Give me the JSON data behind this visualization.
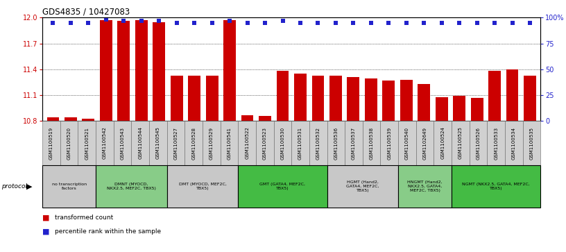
{
  "title": "GDS4835 / 10427083",
  "samples": [
    "GSM1100519",
    "GSM1100520",
    "GSM1100521",
    "GSM1100542",
    "GSM1100543",
    "GSM1100544",
    "GSM1100545",
    "GSM1100527",
    "GSM1100528",
    "GSM1100529",
    "GSM1100541",
    "GSM1100522",
    "GSM1100523",
    "GSM1100530",
    "GSM1100531",
    "GSM1100532",
    "GSM1100536",
    "GSM1100537",
    "GSM1100538",
    "GSM1100539",
    "GSM1100540",
    "GSM1102649",
    "GSM1100524",
    "GSM1100525",
    "GSM1100526",
    "GSM1100533",
    "GSM1100534",
    "GSM1100535"
  ],
  "red_values": [
    10.84,
    10.84,
    10.83,
    11.97,
    11.96,
    11.97,
    11.95,
    11.33,
    11.33,
    11.33,
    11.97,
    10.87,
    10.86,
    11.38,
    11.35,
    11.33,
    11.33,
    11.31,
    11.29,
    11.27,
    11.28,
    11.23,
    11.08,
    11.09,
    11.07,
    11.38,
    11.4,
    11.33
  ],
  "blue_percentiles": [
    95,
    95,
    95,
    98,
    97,
    97,
    97,
    95,
    95,
    95,
    97,
    95,
    95,
    97,
    95,
    95,
    95,
    95,
    95,
    95,
    95,
    95,
    95,
    95,
    95,
    95,
    95,
    95
  ],
  "ylim_left": [
    10.8,
    12.0
  ],
  "ylim_right": [
    0,
    100
  ],
  "yticks_left": [
    10.8,
    11.1,
    11.4,
    11.7,
    12.0
  ],
  "yticks_right": [
    0,
    25,
    50,
    75,
    100
  ],
  "ytick_right_labels": [
    "0",
    "25",
    "50",
    "75",
    "100%"
  ],
  "left_axis_color": "#cc0000",
  "right_axis_color": "#2222cc",
  "bar_color": "#cc0000",
  "dot_color": "#2222cc",
  "protocol_groups": [
    {
      "label": "no transcription\nfactors",
      "start": 0,
      "end": 3,
      "color": "#c8c8c8"
    },
    {
      "label": "DMNT (MYOCD,\nNKX2.5, MEF2C, TBX5)",
      "start": 3,
      "end": 7,
      "color": "#88cc88"
    },
    {
      "label": "DMT (MYOCD, MEF2C,\nTBX5)",
      "start": 7,
      "end": 11,
      "color": "#c8c8c8"
    },
    {
      "label": "GMT (GATA4, MEF2C,\nTBX5)",
      "start": 11,
      "end": 16,
      "color": "#44bb44"
    },
    {
      "label": "HGMT (Hand2,\nGATA4, MEF2C,\nTBX5)",
      "start": 16,
      "end": 20,
      "color": "#c8c8c8"
    },
    {
      "label": "HNGMT (Hand2,\nNKX2.5, GATA4,\nMEF2C, TBX5)",
      "start": 20,
      "end": 23,
      "color": "#88cc88"
    },
    {
      "label": "NGMT (NKX2.5, GATA4, MEF2C,\nTBX5)",
      "start": 23,
      "end": 28,
      "color": "#44bb44"
    }
  ]
}
